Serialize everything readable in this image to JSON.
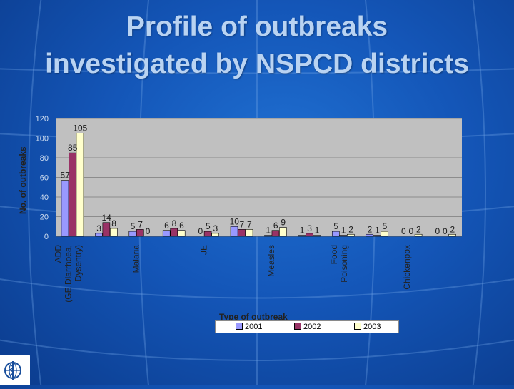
{
  "slide": {
    "title": "Profile of outbreaks investigated by NSPCD districts"
  },
  "chart_data": {
    "type": "bar",
    "title": "Profile of outbreaks investigated by NSPCD districts",
    "xlabel": "Type of outbreak",
    "ylabel": "No. of outbreaks",
    "ylim": [
      0,
      120
    ],
    "yticks": [
      0,
      20,
      40,
      60,
      80,
      100,
      120
    ],
    "grid": true,
    "legend_position": "bottom",
    "categories": [
      "ADD (GE,Diarrhoea, Dysentry)",
      "",
      "Malaria",
      "",
      "JE",
      "",
      "Measles",
      "",
      "Food Poisoning",
      "",
      "Chickenpox",
      ""
    ],
    "category_label_lines": [
      [
        "ADD",
        "(GE,Diarrhoea,",
        "Dysentry)"
      ],
      [],
      [
        "Malaria"
      ],
      [],
      [
        "JE"
      ],
      [],
      [
        "Measles"
      ],
      [],
      [
        "Food",
        "Poisoning"
      ],
      [],
      [
        "Chickenpox"
      ],
      []
    ],
    "series": [
      {
        "name": "2001",
        "color": "#9999ff",
        "values": [
          57,
          3,
          5,
          6,
          0,
          10,
          1,
          1,
          5,
          2,
          0,
          0
        ]
      },
      {
        "name": "2002",
        "color": "#993366",
        "values": [
          85,
          14,
          7,
          8,
          5,
          7,
          6,
          3,
          1,
          1,
          0,
          0
        ]
      },
      {
        "name": "2003",
        "color": "#ffffcc",
        "values": [
          105,
          8,
          0,
          6,
          3,
          7,
          9,
          1,
          2,
          5,
          2,
          2
        ]
      }
    ]
  },
  "colors": {
    "plot_area": "#c0c0c0",
    "gridline": "#8c8c8c",
    "text": "#222222"
  }
}
